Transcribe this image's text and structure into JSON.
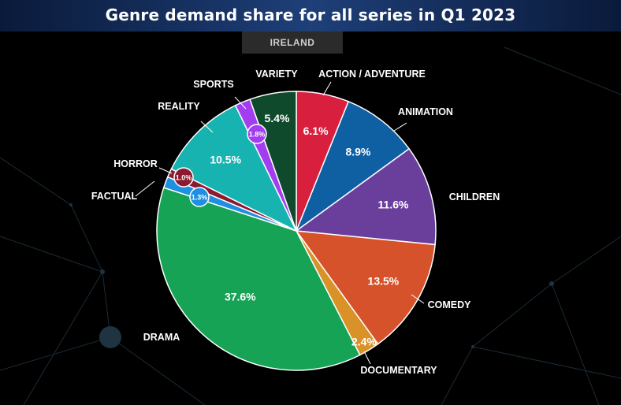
{
  "chart_data": {
    "type": "pie",
    "title": "Genre demand share for all series in Q1 2023",
    "subtitle": "IRELAND",
    "slices": [
      {
        "label": "ACTION / ADVENTURE",
        "value": 6.1,
        "display": "6.1%",
        "color": "#d81f3e"
      },
      {
        "label": "ANIMATION",
        "value": 8.9,
        "display": "8.9%",
        "color": "#0f5fa3"
      },
      {
        "label": "CHILDREN",
        "value": 11.6,
        "display": "11.6%",
        "color": "#6a3f9c"
      },
      {
        "label": "COMEDY",
        "value": 13.5,
        "display": "13.5%",
        "color": "#d6522a"
      },
      {
        "label": "DOCUMENTARY",
        "value": 2.4,
        "display": "2.4%",
        "color": "#d99228"
      },
      {
        "label": "DRAMA",
        "value": 37.6,
        "display": "37.6%",
        "color": "#16a356"
      },
      {
        "label": "FACTUAL",
        "value": 1.3,
        "display": "1.3%",
        "color": "#1f8fe0"
      },
      {
        "label": "HORROR",
        "value": 1.0,
        "display": "1.0%",
        "color": "#8b1a30"
      },
      {
        "label": "REALITY",
        "value": 10.5,
        "display": "10.5%",
        "color": "#17b3b0"
      },
      {
        "label": "SPORTS",
        "value": 1.8,
        "display": "1.8%",
        "color": "#a33ef0"
      },
      {
        "label": "VARIETY",
        "value": 5.4,
        "display": "5.4%",
        "color": "#0f4a2c"
      }
    ]
  }
}
